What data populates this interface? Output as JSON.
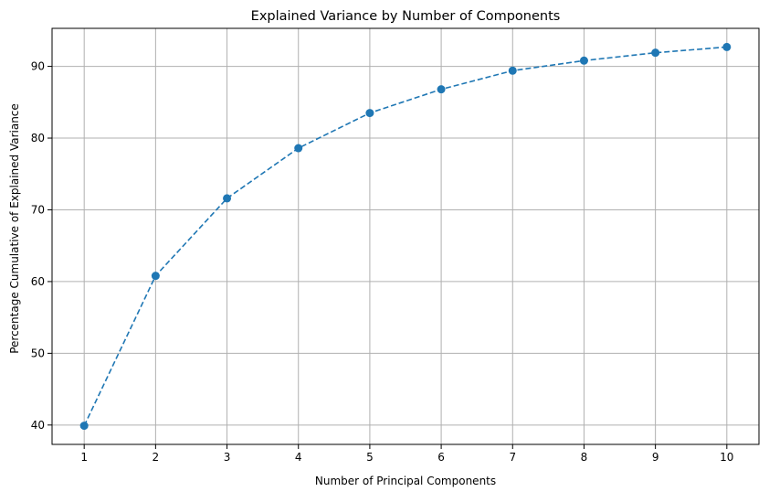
{
  "chart_data": {
    "type": "line",
    "title": "Explained Variance by Number of Components",
    "xlabel": "Number of Principal Components",
    "ylabel": "Percentage Cumulative of Explained Variance",
    "x": [
      1,
      2,
      3,
      4,
      5,
      6,
      7,
      8,
      9,
      10
    ],
    "series": [
      {
        "values": [
          39.9,
          60.8,
          71.6,
          78.6,
          83.5,
          86.8,
          89.4,
          90.8,
          91.9,
          92.7
        ],
        "color": "#1f77b4",
        "line_style": "dashed",
        "marker": "circle"
      }
    ],
    "xticks": [
      1,
      2,
      3,
      4,
      5,
      6,
      7,
      8,
      9,
      10
    ],
    "yticks": [
      40,
      50,
      60,
      70,
      80,
      90
    ],
    "xlim": [
      0.55,
      10.45
    ],
    "ylim": [
      37.3,
      95.3
    ],
    "grid": true,
    "grid_color": "#b0b0b0"
  }
}
